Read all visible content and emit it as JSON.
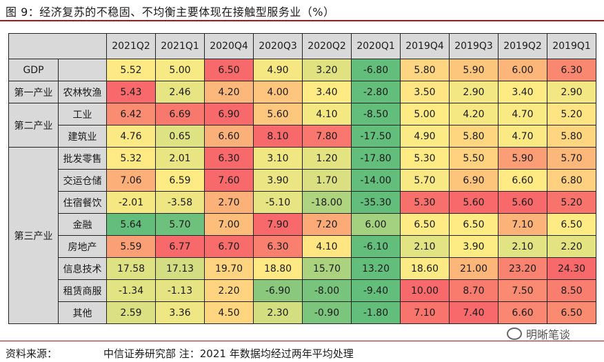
{
  "title": "图 9：经济复苏的不稳固、不均衡主要体现在接触型服务业（%）",
  "chart_data": {
    "type": "table",
    "columns": [
      "2021Q2",
      "2021Q1",
      "2020Q4",
      "2020Q3",
      "2020Q2",
      "2020Q1",
      "2019Q4",
      "2019Q3",
      "2019Q2",
      "2019Q1"
    ],
    "rows": [
      {
        "sector": "GDP",
        "industry": "",
        "values": [
          5.52,
          5.0,
          6.5,
          4.9,
          3.2,
          -6.8,
          5.8,
          5.9,
          6.0,
          6.3
        ],
        "labels": [
          "5.52",
          "5.00",
          "6.50",
          "4.90",
          "3.20",
          "-6.80",
          "5.80",
          "5.90",
          "6.00",
          "6.30"
        ]
      },
      {
        "sector": "第一产业",
        "industry": "农林牧渔",
        "values": [
          5.43,
          2.46,
          4.2,
          4.0,
          3.4,
          -2.8,
          3.5,
          2.9,
          3.4,
          2.9
        ],
        "labels": [
          "5.43",
          "2.46",
          "4.20",
          "4.00",
          "3.40",
          "-2.80",
          "3.50",
          "2.90",
          "3.40",
          "2.90"
        ]
      },
      {
        "sector": "第二产业",
        "industry": "工业",
        "values": [
          6.42,
          6.69,
          6.9,
          5.6,
          4.1,
          -8.5,
          5.0,
          4.2,
          4.7,
          5.2
        ],
        "labels": [
          "6.42",
          "6.69",
          "6.90",
          "5.60",
          "4.10",
          "-8.50",
          "5.00",
          "4.20",
          "4.70",
          "5.20"
        ]
      },
      {
        "sector": "第二产业",
        "industry": "建筑业",
        "values": [
          4.76,
          0.65,
          6.6,
          8.1,
          7.8,
          -17.5,
          4.9,
          5.8,
          4.7,
          5.8
        ],
        "labels": [
          "4.76",
          "0.65",
          "6.60",
          "8.10",
          "7.80",
          "-17.50",
          "4.90",
          "5.80",
          "4.70",
          "5.80"
        ]
      },
      {
        "sector": "第三产业",
        "industry": "批发零售",
        "values": [
          5.32,
          2.01,
          6.3,
          3.1,
          1.2,
          -17.8,
          5.3,
          5.5,
          5.9,
          5.7
        ],
        "labels": [
          "5.32",
          "2.01",
          "6.30",
          "3.10",
          "1.20",
          "-17.80",
          "5.30",
          "5.50",
          "5.90",
          "5.70"
        ]
      },
      {
        "sector": "第三产业",
        "industry": "交运仓储",
        "values": [
          7.06,
          6.59,
          7.6,
          3.9,
          1.7,
          -14.0,
          5.7,
          6.9,
          6.6,
          6.8
        ],
        "labels": [
          "7.06",
          "6.59",
          "7.60",
          "3.90",
          "1.70",
          "-14.00",
          "5.70",
          "6.90",
          "6.60",
          "6.80"
        ]
      },
      {
        "sector": "第三产业",
        "industry": "住宿餐饮",
        "values": [
          -2.01,
          -3.58,
          2.7,
          -5.1,
          -18.0,
          -35.3,
          5.3,
          5.6,
          5.6,
          5.2
        ],
        "labels": [
          "-2.01",
          "-3.58",
          "2.70",
          "-5.10",
          "-18.00",
          "-35.30",
          "5.30",
          "5.60",
          "5.60",
          "5.20"
        ]
      },
      {
        "sector": "第三产业",
        "industry": "金融",
        "values": [
          5.64,
          5.7,
          7.0,
          7.9,
          7.2,
          6.0,
          6.5,
          6.5,
          7.1,
          6.5
        ],
        "labels": [
          "5.64",
          "5.70",
          "7.00",
          "7.90",
          "7.20",
          "6.00",
          "6.50",
          "6.50",
          "7.10",
          "6.50"
        ]
      },
      {
        "sector": "第三产业",
        "industry": "房地产",
        "values": [
          5.59,
          6.77,
          6.7,
          6.3,
          4.1,
          -6.1,
          2.1,
          3.9,
          2.1,
          2.2
        ],
        "labels": [
          "5.59",
          "6.77",
          "6.70",
          "6.30",
          "4.10",
          "-6.10",
          "2.10",
          "3.90",
          "2.10",
          "2.20"
        ]
      },
      {
        "sector": "第三产业",
        "industry": "信息技术",
        "values": [
          17.58,
          17.13,
          19.7,
          18.8,
          15.7,
          13.2,
          18.6,
          21.0,
          23.2,
          24.3
        ],
        "labels": [
          "17.58",
          "17.13",
          "19.70",
          "18.80",
          "15.70",
          "13.20",
          "18.60",
          "21.00",
          "23.20",
          "24.30"
        ]
      },
      {
        "sector": "第三产业",
        "industry": "租赁商服",
        "values": [
          -1.34,
          -1.13,
          2.2,
          -6.9,
          -8.0,
          -9.4,
          10.0,
          8.7,
          7.5,
          8.5
        ],
        "labels": [
          "-1.34",
          "-1.13",
          "2.20",
          "-6.90",
          "-8.00",
          "-9.40",
          "10.00",
          "8.70",
          "7.50",
          "8.50"
        ]
      },
      {
        "sector": "第三产业",
        "industry": "其他",
        "values": [
          2.59,
          3.36,
          4.5,
          2.3,
          -0.9,
          -1.8,
          7.1,
          7.4,
          6.6,
          6.5
        ],
        "labels": [
          "2.59",
          "3.36",
          "4.50",
          "2.30",
          "-0.90",
          "-1.80",
          "7.10",
          "7.40",
          "6.60",
          "6.50"
        ]
      }
    ],
    "color_scale": {
      "high": "#f8696b",
      "mid": "#ffeb84",
      "low": "#63be7b"
    }
  },
  "footer": {
    "source_label": "资料来源：",
    "source_text": "中信证券研究部  注：2021 年数据均经过两年平均处理"
  },
  "watermark": {
    "text": "明晰笔谈",
    "icon": "wechat-icon"
  }
}
